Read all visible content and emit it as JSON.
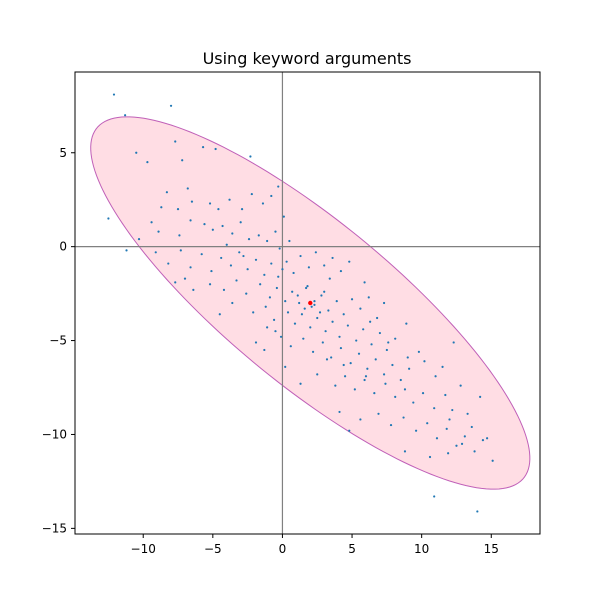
{
  "chart_data": {
    "type": "scatter",
    "title": "Using keyword arguments",
    "xlim": [
      -14.9,
      18.5
    ],
    "ylim": [
      -15.3,
      9.3
    ],
    "x_ticks": [
      -10,
      -5,
      0,
      5,
      10,
      15
    ],
    "y_ticks": [
      -15,
      -10,
      -5,
      0,
      5
    ],
    "x_tick_labels": [
      "−10",
      "−5",
      "0",
      "5",
      "10",
      "15"
    ],
    "y_tick_labels": [
      "−15",
      "−10",
      "−5",
      "0",
      "5"
    ],
    "grid": false,
    "reference_lines": {
      "x": 0,
      "y": 0,
      "color": "#808080"
    },
    "ellipse": {
      "center": [
        2.0,
        -3.0
      ],
      "width": 36.0,
      "height": 9.6,
      "angle_deg": -30,
      "facecolor": "#ffdde4",
      "edgecolor": "#c060b8"
    },
    "mean_point": {
      "x": 2.0,
      "y": -3.0,
      "color": "#ff0000"
    },
    "series": [
      {
        "color": "#1f77b4",
        "points": [
          [
            -12.1,
            8.1
          ],
          [
            -11.3,
            7.0
          ],
          [
            -8.0,
            7.5
          ],
          [
            -10.5,
            5.0
          ],
          [
            -9.7,
            4.5
          ],
          [
            -7.7,
            5.6
          ],
          [
            -5.7,
            5.3
          ],
          [
            -4.8,
            5.2
          ],
          [
            -2.3,
            4.8
          ],
          [
            -7.2,
            4.6
          ],
          [
            -8.3,
            2.9
          ],
          [
            -8.7,
            2.1
          ],
          [
            -7.5,
            2.0
          ],
          [
            -6.8,
            3.1
          ],
          [
            -6.5,
            2.4
          ],
          [
            -5.2,
            2.3
          ],
          [
            -4.6,
            2.0
          ],
          [
            -3.8,
            2.5
          ],
          [
            -2.9,
            2.0
          ],
          [
            -2.2,
            2.8
          ],
          [
            -1.4,
            2.3
          ],
          [
            -0.8,
            2.7
          ],
          [
            -0.3,
            3.2
          ],
          [
            0.1,
            1.6
          ],
          [
            -9.4,
            1.3
          ],
          [
            -8.9,
            0.8
          ],
          [
            -10.3,
            0.4
          ],
          [
            -7.4,
            0.6
          ],
          [
            -6.6,
            1.4
          ],
          [
            -5.6,
            1.2
          ],
          [
            -5.0,
            0.9
          ],
          [
            -4.3,
            1.1
          ],
          [
            -3.6,
            0.7
          ],
          [
            -3.0,
            1.3
          ],
          [
            -2.4,
            0.4
          ],
          [
            -1.7,
            0.6
          ],
          [
            -1.1,
            0.3
          ],
          [
            -0.5,
            0.8
          ],
          [
            -0.2,
            -0.1
          ],
          [
            0.5,
            0.3
          ],
          [
            -9.1,
            -0.3
          ],
          [
            -8.2,
            -0.9
          ],
          [
            -7.3,
            -0.2
          ],
          [
            -6.6,
            -1.1
          ],
          [
            -5.8,
            -0.4
          ],
          [
            -5.1,
            -1.3
          ],
          [
            -4.4,
            -0.6
          ],
          [
            -3.7,
            -1.0
          ],
          [
            -3.1,
            -0.3
          ],
          [
            -2.5,
            -1.2
          ],
          [
            -1.9,
            -0.7
          ],
          [
            -1.3,
            -1.5
          ],
          [
            -0.8,
            -0.9
          ],
          [
            -0.3,
            -1.6
          ],
          [
            0.3,
            -0.8
          ],
          [
            0.8,
            -1.4
          ],
          [
            1.3,
            -0.5
          ],
          [
            1.9,
            -1.1
          ],
          [
            2.4,
            -0.3
          ],
          [
            3.0,
            -1.0
          ],
          [
            3.6,
            -0.6
          ],
          [
            4.2,
            -1.3
          ],
          [
            4.8,
            -0.8
          ],
          [
            -7.0,
            -1.7
          ],
          [
            -5.2,
            -2.0
          ],
          [
            -4.2,
            -2.3
          ],
          [
            -3.3,
            -1.8
          ],
          [
            -2.6,
            -2.5
          ],
          [
            -1.6,
            -2.0
          ],
          [
            -0.9,
            -2.7
          ],
          [
            -0.4,
            -2.2
          ],
          [
            0.2,
            -2.9
          ],
          [
            0.7,
            -2.4
          ],
          [
            1.2,
            -3.0
          ],
          [
            1.7,
            -2.2
          ],
          [
            2.3,
            -3.1
          ],
          [
            2.8,
            -2.6
          ],
          [
            3.3,
            -3.4
          ],
          [
            3.9,
            -2.9
          ],
          [
            4.4,
            -3.6
          ],
          [
            5.0,
            -2.8
          ],
          [
            5.6,
            -3.3
          ],
          [
            6.2,
            -2.7
          ],
          [
            6.8,
            -3.8
          ],
          [
            -3.6,
            -3.0
          ],
          [
            -2.1,
            -3.5
          ],
          [
            -1.2,
            -3.2
          ],
          [
            -0.6,
            -3.9
          ],
          [
            0.4,
            -3.5
          ],
          [
            0.9,
            -4.1
          ],
          [
            1.4,
            -3.6
          ],
          [
            2.0,
            -4.3
          ],
          [
            2.5,
            -3.8
          ],
          [
            3.1,
            -4.5
          ],
          [
            3.6,
            -4.0
          ],
          [
            4.1,
            -4.8
          ],
          [
            4.7,
            -4.2
          ],
          [
            5.3,
            -5.0
          ],
          [
            5.8,
            -4.4
          ],
          [
            6.4,
            -5.2
          ],
          [
            7.0,
            -4.6
          ],
          [
            7.5,
            -5.5
          ],
          [
            8.1,
            -4.9
          ],
          [
            -1.1,
            -4.3
          ],
          [
            -0.1,
            -4.8
          ],
          [
            0.6,
            -5.3
          ],
          [
            1.5,
            -4.9
          ],
          [
            2.2,
            -5.6
          ],
          [
            2.9,
            -5.1
          ],
          [
            3.5,
            -5.9
          ],
          [
            4.2,
            -5.4
          ],
          [
            4.9,
            -6.2
          ],
          [
            5.5,
            -5.7
          ],
          [
            6.1,
            -6.5
          ],
          [
            6.7,
            -6.0
          ],
          [
            7.3,
            -6.8
          ],
          [
            7.9,
            -6.3
          ],
          [
            8.5,
            -7.1
          ],
          [
            9.1,
            -6.5
          ],
          [
            -1.3,
            -5.5
          ],
          [
            0.2,
            -6.4
          ],
          [
            1.3,
            -7.3
          ],
          [
            2.5,
            -6.8
          ],
          [
            3.8,
            -7.4
          ],
          [
            4.5,
            -6.9
          ],
          [
            5.2,
            -7.6
          ],
          [
            5.9,
            -7.1
          ],
          [
            6.6,
            -7.8
          ],
          [
            7.4,
            -7.3
          ],
          [
            8.1,
            -8.0
          ],
          [
            8.8,
            -7.6
          ],
          [
            9.4,
            -8.3
          ],
          [
            10.1,
            -7.8
          ],
          [
            10.9,
            -8.6
          ],
          [
            11.5,
            -6.4
          ],
          [
            12.3,
            -5.1
          ],
          [
            12.8,
            -7.4
          ],
          [
            13.3,
            -8.9
          ],
          [
            14.2,
            -8.0
          ],
          [
            4.1,
            -8.8
          ],
          [
            5.6,
            -9.2
          ],
          [
            6.9,
            -8.9
          ],
          [
            7.8,
            -9.5
          ],
          [
            8.7,
            -9.1
          ],
          [
            9.6,
            -9.8
          ],
          [
            10.4,
            -9.4
          ],
          [
            11.1,
            -10.2
          ],
          [
            11.8,
            -9.7
          ],
          [
            12.5,
            -10.6
          ],
          [
            13.1,
            -10.1
          ],
          [
            13.8,
            -10.9
          ],
          [
            14.4,
            -10.3
          ],
          [
            15.1,
            -11.4
          ],
          [
            4.8,
            -9.8
          ],
          [
            8.8,
            -10.9
          ],
          [
            10.6,
            -11.2
          ],
          [
            11.9,
            -11.0
          ],
          [
            12.9,
            -10.5
          ],
          [
            14.7,
            -10.2
          ],
          [
            10.9,
            -13.3
          ],
          [
            14.0,
            -14.1
          ],
          [
            -12.5,
            1.5
          ],
          [
            -11.2,
            -0.2
          ],
          [
            -6.4,
            -2.3
          ],
          [
            -7.7,
            -1.9
          ],
          [
            -4.5,
            -3.6
          ],
          [
            -1.9,
            -5.1
          ],
          [
            -0.5,
            -4.5
          ],
          [
            1.8,
            -2.1
          ],
          [
            3.4,
            -1.7
          ],
          [
            5.9,
            -1.9
          ],
          [
            7.3,
            -3.0
          ],
          [
            8.9,
            -4.1
          ],
          [
            9.8,
            -5.6
          ],
          [
            11.0,
            -6.9
          ],
          [
            2.1,
            -3.2
          ],
          [
            2.3,
            -2.9
          ],
          [
            1.6,
            -3.3
          ],
          [
            2.7,
            -3.5
          ],
          [
            1.1,
            -2.6
          ],
          [
            3.0,
            -2.4
          ],
          [
            0.0,
            -1.2
          ],
          [
            -2.8,
            -0.5
          ],
          [
            -4.0,
            0.1
          ],
          [
            6.3,
            -4.0
          ],
          [
            7.6,
            -5.1
          ],
          [
            9.0,
            -5.9
          ],
          [
            10.2,
            -6.1
          ],
          [
            11.7,
            -7.9
          ],
          [
            12.2,
            -8.7
          ],
          [
            13.6,
            -9.6
          ],
          [
            12.0,
            -9.2
          ],
          [
            6.0,
            -6.9
          ],
          [
            4.4,
            -6.3
          ],
          [
            3.2,
            -6.0
          ]
        ]
      }
    ]
  }
}
